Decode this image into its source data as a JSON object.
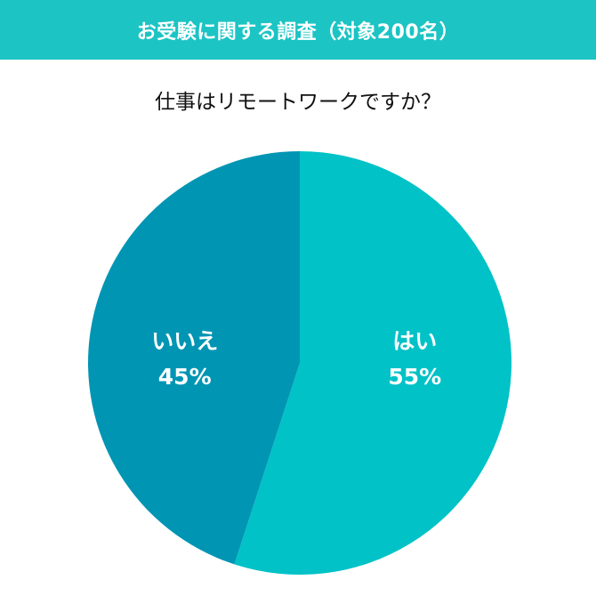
{
  "banner": {
    "title": "お受験に関する調査（対象200名）"
  },
  "question": "仕事はリモートワークですか？",
  "colors": {
    "banner_bg": "#1cc4c4",
    "yes_slice": "#00c2c7",
    "no_slice": "#0095b3",
    "label_text": "#ffffff"
  },
  "chart_data": {
    "type": "pie",
    "title": "仕事はリモートワークですか？",
    "slices": [
      {
        "label": "はい",
        "value": 55,
        "value_label": "55%",
        "color": "#00c2c7"
      },
      {
        "label": "いいえ",
        "value": 45,
        "value_label": "45%",
        "color": "#0095b3"
      }
    ],
    "start": "top",
    "direction": "clockwise"
  }
}
